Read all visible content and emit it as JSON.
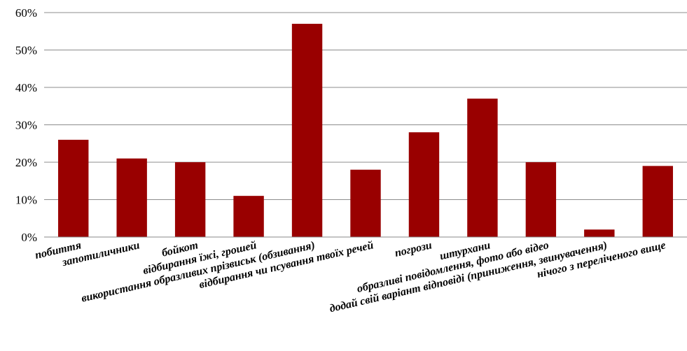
{
  "chart_data": {
    "type": "bar",
    "categories": [
      "побиття",
      "запотиличники",
      "бойкот",
      "відбирання їжі, грошей",
      "використання образливих прізвиськ (обзивання)",
      "відбирання  чи псування твоїх речей",
      "погрози",
      "штурхани",
      "образливі повідомлення, фото або відео",
      "додай свій варіант відповіді  (приниження, звинувачення)",
      "нічого з переліченого вище"
    ],
    "values": [
      26,
      21,
      20,
      11,
      57,
      18,
      28,
      37,
      20,
      2,
      19
    ],
    "y_tick_labels": [
      "0%",
      "10%",
      "20%",
      "30%",
      "40%",
      "50%",
      "60%"
    ],
    "ylim": [
      0,
      60
    ],
    "y_unit": "%",
    "grid": true,
    "bar_color": "#990000",
    "title": "",
    "xlabel": "",
    "ylabel": ""
  }
}
